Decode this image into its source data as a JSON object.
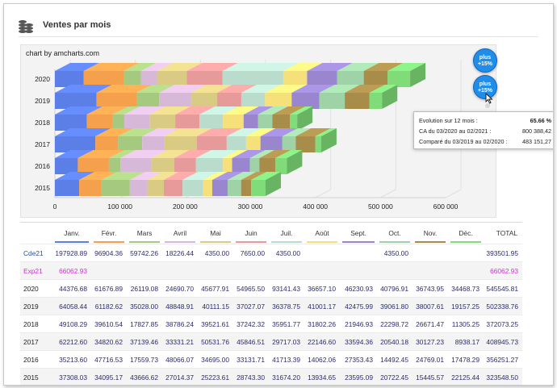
{
  "header": {
    "title": "Ventes par mois"
  },
  "chart_credit": "chart by amcharts.com",
  "buttons": {
    "plus1": [
      "plus",
      "+15%"
    ],
    "plus2": [
      "plus",
      "+15%"
    ]
  },
  "tooltip": {
    "row1_label": "Evolution sur 12 mois :",
    "row1_value": "65.66 %",
    "row2_label": "CA du 03/2020 au 02/2021 :",
    "row2_value": "800 388,42",
    "row3_label": "Comparé du 03/2019 au 02/2020 :",
    "row3_value": "483 151,27"
  },
  "month_colors": [
    "#5b7fe6",
    "#f5a04d",
    "#a5c97f",
    "#d8b8d8",
    "#d9cb83",
    "#e69a9a",
    "#b9dccd",
    "#f5e07a",
    "#9a86cf",
    "#9fd2a6",
    "#a88c4a",
    "#7fdc79"
  ],
  "chart_data": {
    "type": "bar",
    "orientation": "horizontal",
    "stacked": true,
    "categories": [
      "2020",
      "2019",
      "2018",
      "2017",
      "2016",
      "2015"
    ],
    "series": [
      {
        "name": "Janv.",
        "values": [
          44376.68,
          64058.44,
          49108.29,
          62212.6,
          35213.6,
          37308.03
        ]
      },
      {
        "name": "Févr.",
        "values": [
          61676.89,
          61182.62,
          39610.54,
          34820.62,
          47716.53,
          34095.17
        ]
      },
      {
        "name": "Mars",
        "values": [
          26119.08,
          35028.0,
          17827.85,
          37139.46,
          17559.73,
          43666.62
        ]
      },
      {
        "name": "Avril",
        "values": [
          24690.7,
          48848.91,
          38786.24,
          33331.21,
          48066.07,
          27014.37
        ]
      },
      {
        "name": "Mai",
        "values": [
          45677.91,
          40111.15,
          39521.61,
          50531.76,
          34695.0,
          25223.61
        ]
      },
      {
        "name": "Juin",
        "values": [
          54965.5,
          37027.07,
          37242.32,
          45846.51,
          33131.71,
          28743.3
        ]
      },
      {
        "name": "Juil.",
        "values": [
          93141.43,
          36378.75,
          35951.77,
          29717.03,
          41713.39,
          31674.2
        ]
      },
      {
        "name": "Août",
        "values": [
          36657.1,
          41001.17,
          31802.26,
          22146.6,
          14062.06,
          13934.65
        ]
      },
      {
        "name": "Sept.",
        "values": [
          46230.93,
          42475.99,
          21946.93,
          33594.36,
          27353.43,
          23595.09
        ]
      },
      {
        "name": "Oct.",
        "values": [
          40796.91,
          39061.8,
          22298.72,
          20540.18,
          14492.45,
          20722.45
        ]
      },
      {
        "name": "Nov.",
        "values": [
          36743.95,
          38007.61,
          26671.47,
          30127.23,
          24769.01,
          15445.57
        ]
      },
      {
        "name": "Déc.",
        "values": [
          34468.73,
          19157.25,
          11305.25,
          8938.17,
          17478.29,
          22125.44
        ]
      }
    ],
    "xticks": [
      "0",
      "100 000",
      "200 000",
      "300 000",
      "400 000",
      "500 000",
      "600 000"
    ],
    "xlim": [
      0,
      600000
    ]
  },
  "table": {
    "headers": [
      "",
      "Janv.",
      "Févr.",
      "Mars",
      "Avril",
      "Mai",
      "Juin",
      "Juil.",
      "Août",
      "Sept.",
      "Oct.",
      "Nov.",
      "Déc.",
      "TOTAL"
    ],
    "rows": [
      [
        "Cde21",
        "197928.89",
        "96904.36",
        "59742.26",
        "18226.44",
        "4350.00",
        "7650.00",
        "4350.00",
        "",
        "",
        "4350.00",
        "",
        "",
        "393501.95"
      ],
      [
        "Exp21",
        "66062.93",
        "",
        "",
        "",
        "",
        "",
        "",
        "",
        "",
        "",
        "",
        "",
        "66062.93"
      ],
      [
        "2020",
        "44376.68",
        "61676.89",
        "26119.08",
        "24690.70",
        "45677.91",
        "54965.50",
        "93141.43",
        "36657.10",
        "46230.93",
        "40796.91",
        "36743.95",
        "34468.73",
        "545545.81"
      ],
      [
        "2019",
        "64058.44",
        "61182.62",
        "35028.00",
        "48848.91",
        "40111.15",
        "37027.07",
        "36378.75",
        "41001.17",
        "42475.99",
        "39061.80",
        "38007.61",
        "19157.25",
        "502338.76"
      ],
      [
        "2018",
        "49108.29",
        "39610.54",
        "17827.85",
        "38786.24",
        "39521.61",
        "37242.32",
        "35951.77",
        "31802.26",
        "21946.93",
        "22298.72",
        "26671.47",
        "11305.25",
        "372073.25"
      ],
      [
        "2017",
        "62212.60",
        "34820.62",
        "37139.46",
        "33331.21",
        "50531.76",
        "45846.51",
        "29717.03",
        "22146.60",
        "33594.36",
        "20540.18",
        "30127.23",
        "8938.17",
        "408945.73"
      ],
      [
        "2016",
        "35213.60",
        "47716.53",
        "17559.73",
        "48066.07",
        "34695.00",
        "33131.71",
        "41713.39",
        "14062.06",
        "27353.43",
        "14492.45",
        "24769.01",
        "17478.29",
        "356251.27"
      ],
      [
        "2015",
        "37308.03",
        "34095.17",
        "43666.62",
        "27014.37",
        "25223.61",
        "28743.30",
        "31674.20",
        "13934.65",
        "23595.09",
        "20722.45",
        "15445.57",
        "22125.44",
        "323548.50"
      ]
    ]
  }
}
